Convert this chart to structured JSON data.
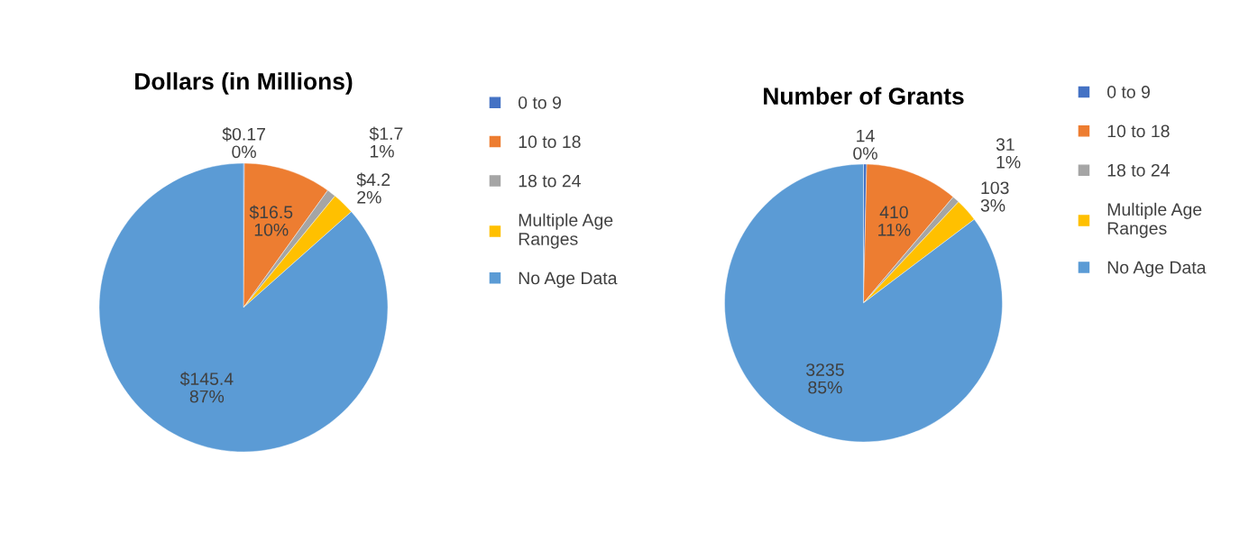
{
  "chart_data": [
    {
      "type": "pie",
      "title": "Dollars (in Millions)",
      "categories": [
        "0 to 9",
        "10 to 18",
        "18 to 24",
        "Multiple Age\nRanges",
        "No Age Data"
      ],
      "values": [
        0.17,
        16.5,
        1.7,
        4.2,
        145.4
      ],
      "colors": [
        "#4472c4",
        "#ed7d31",
        "#a5a5a5",
        "#ffc000",
        "#5b9bd5"
      ],
      "value_labels": [
        "$0.17\n0%",
        "$16.5\n10%",
        "$1.7\n1%",
        "$4.2\n2%",
        "$145.4\n87%"
      ],
      "legend": "right"
    },
    {
      "type": "pie",
      "title": "Number of Grants",
      "categories": [
        "0 to 9",
        "10 to 18",
        "18 to 24",
        "Multiple Age\nRanges",
        "No Age Data"
      ],
      "values": [
        14,
        410,
        31,
        103,
        3235
      ],
      "colors": [
        "#4472c4",
        "#ed7d31",
        "#a5a5a5",
        "#ffc000",
        "#5b9bd5"
      ],
      "value_labels": [
        "14\n0%",
        "410\n11%",
        "31\n1%",
        "103\n3%",
        "3235\n85%"
      ],
      "legend": "right"
    }
  ]
}
